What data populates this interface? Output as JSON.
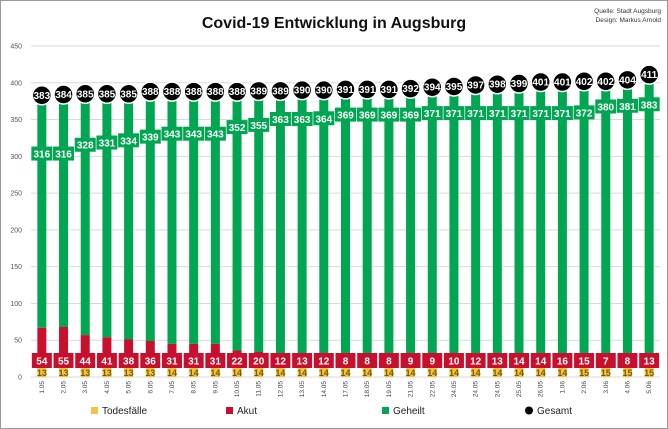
{
  "header": {
    "title": "Covid-19 Entwicklung in Augsburg",
    "source": "Quelle: Stadt Augsburg",
    "design": "Design: Markus Arnold"
  },
  "colors": {
    "todesfaelle": "#f5c342",
    "akut": "#c8102e",
    "geheilt": "#00a651",
    "gesamt": "#000000"
  },
  "chart_data": {
    "type": "bar",
    "title": "Covid-19 Entwicklung in Augsburg",
    "xlabel": "",
    "ylabel": "",
    "ylim": [
      0,
      450
    ],
    "yticks": [
      0,
      50,
      100,
      150,
      200,
      250,
      300,
      350,
      400,
      450
    ],
    "grid": true,
    "legend_position": "bottom",
    "categories": [
      "1.05",
      "2.05",
      "3.05",
      "4.05",
      "5.05",
      "6.05",
      "7.05",
      "8.05",
      "9.05",
      "10.05",
      "11.05",
      "12.05",
      "13.05",
      "14.05",
      "17.05",
      "18.05",
      "19.05",
      "21.05",
      "22.05",
      "24.05",
      "24.05",
      "24.05",
      "25.05",
      "26.05",
      "1.06",
      "2.06",
      "3.06",
      "4.06",
      "5.06"
    ],
    "series": [
      {
        "name": "Todesfälle",
        "values": [
          13,
          13,
          13,
          13,
          13,
          13,
          14,
          14,
          14,
          14,
          14,
          14,
          14,
          14,
          14,
          14,
          14,
          14,
          14,
          14,
          14,
          14,
          14,
          14,
          14,
          15,
          15,
          15,
          15
        ]
      },
      {
        "name": "Akut",
        "values": [
          54,
          55,
          44,
          41,
          38,
          36,
          31,
          31,
          31,
          22,
          20,
          12,
          13,
          12,
          8,
          8,
          8,
          9,
          9,
          10,
          12,
          13,
          14,
          14,
          16,
          15,
          7,
          8,
          13
        ]
      },
      {
        "name": "Geheilt",
        "values": [
          316,
          316,
          328,
          331,
          334,
          339,
          343,
          343,
          343,
          352,
          355,
          363,
          363,
          364,
          369,
          369,
          369,
          369,
          371,
          371,
          371,
          371,
          371,
          371,
          371,
          372,
          380,
          381,
          383
        ]
      },
      {
        "name": "Gesamt",
        "values": [
          383,
          384,
          385,
          385,
          385,
          388,
          388,
          388,
          388,
          388,
          389,
          389,
          390,
          390,
          391,
          391,
          391,
          392,
          394,
          395,
          397,
          398,
          399,
          401,
          401,
          402,
          402,
          404,
          411
        ]
      }
    ]
  }
}
